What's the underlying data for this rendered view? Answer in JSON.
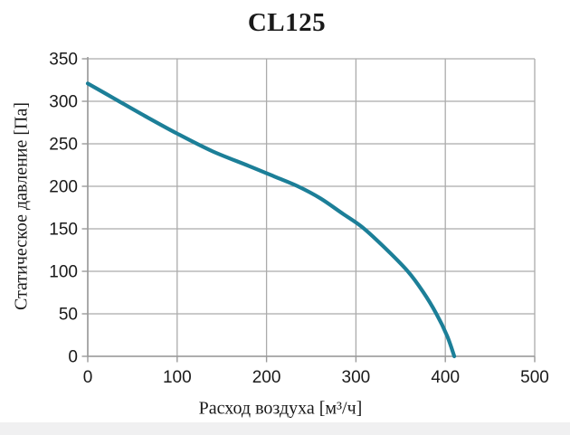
{
  "title": "CL125",
  "colors": {
    "curve": "#1c7f98",
    "grid": "#ababab",
    "axis": "#9a9a9a",
    "text": "#1a1a1a",
    "background": "#ffffff",
    "footer_band": "#f0f0f1"
  },
  "chart_data": {
    "type": "line",
    "title": "CL125",
    "xlabel": "Расход воздуха [м³/ч]",
    "ylabel": "Статическое давление [Па]",
    "xlim": [
      0,
      500
    ],
    "ylim": [
      0,
      350
    ],
    "x_ticks": [
      "0",
      "100",
      "200",
      "300",
      "400",
      "500"
    ],
    "y_ticks": [
      "0",
      "50",
      "100",
      "150",
      "200",
      "250",
      "300",
      "350"
    ],
    "x_tick_values": [
      0,
      100,
      200,
      300,
      400,
      500
    ],
    "y_tick_values": [
      0,
      50,
      100,
      150,
      200,
      250,
      300,
      350
    ],
    "grid": true,
    "legend": false,
    "series": [
      {
        "name": "CL125",
        "color": "#1c7f98",
        "points": [
          [
            0,
            321
          ],
          [
            30,
            303
          ],
          [
            60,
            285
          ],
          [
            100,
            262
          ],
          [
            140,
            241
          ],
          [
            180,
            224
          ],
          [
            210,
            211
          ],
          [
            235,
            200
          ],
          [
            260,
            186
          ],
          [
            285,
            168
          ],
          [
            307,
            152
          ],
          [
            330,
            130
          ],
          [
            358,
            100
          ],
          [
            375,
            76
          ],
          [
            390,
            50
          ],
          [
            402,
            24
          ],
          [
            410,
            0
          ]
        ]
      }
    ]
  }
}
